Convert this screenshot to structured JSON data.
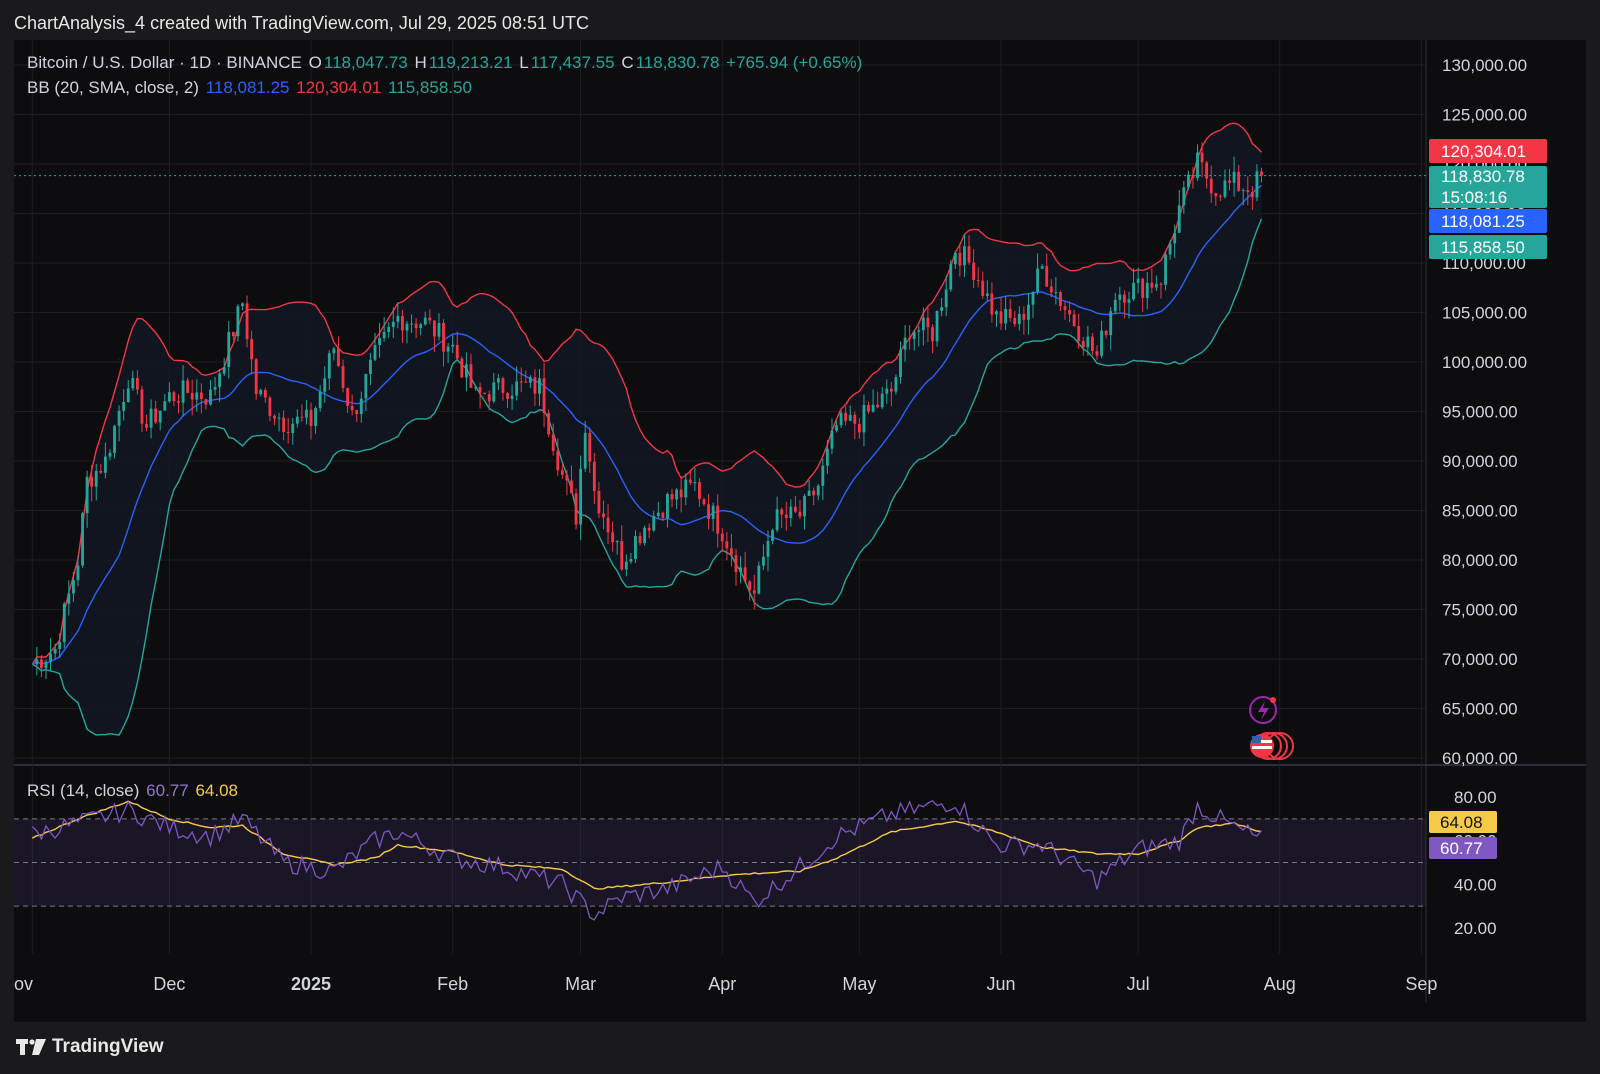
{
  "header": {
    "title": "ChartAnalysis_4 created with TradingView.com, Jul 29, 2025 08:51 UTC"
  },
  "legend": {
    "symbol": "Bitcoin / U.S. Dollar · 1D · BINANCE",
    "o_label": "O",
    "o": "118,047.73",
    "h_label": "H",
    "h": "119,213.21",
    "l_label": "L",
    "l": "117,437.55",
    "c_label": "C",
    "c": "118,830.78",
    "change": "+765.94 (+0.65%)",
    "bb_label": "BB (20, SMA, close, 2)",
    "bb_basis": "118,081.25",
    "bb_upper": "120,304.01",
    "bb_lower": "115,858.50",
    "rsi_label": "RSI (14, close)",
    "rsi_value": "60.77",
    "rsi_ma": "64.08"
  },
  "badges": {
    "upper": "120,304.01",
    "price": "118,830.78",
    "countdown": "15:08:16",
    "basis": "118,081.25",
    "lower": "115,858.50",
    "rsi_ma": "64.08",
    "rsi": "60.77"
  },
  "footer": {
    "brand": "TradingView"
  },
  "colors": {
    "up": "#26a69a",
    "down": "#f23645",
    "basis": "#2962ff",
    "upper": "#f23645",
    "lower": "#26a69a",
    "rsi": "#7e57c2",
    "rsi_ma": "#f7c948"
  },
  "chart_data": [
    {
      "type": "candlestick",
      "title": "Bitcoin / U.S. Dollar · 1D · BINANCE",
      "y_ticks": [
        "130,000.00",
        "125,000.00",
        "120,000.00",
        "115,000.00",
        "110,000.00",
        "105,000.00",
        "100,000.00",
        "95,000.00",
        "90,000.00",
        "85,000.00",
        "80,000.00",
        "75,000.00",
        "70,000.00",
        "65,000.00",
        "60,000.00"
      ],
      "ylim": [
        60000,
        130000
      ],
      "x_ticks": [
        "ov",
        "Dec",
        "2025",
        "Feb",
        "Mar",
        "Apr",
        "May",
        "Jun",
        "Jul",
        "Aug",
        "Sep"
      ],
      "x_tick_dates": [
        "2024-11-01",
        "2024-12-01",
        "2025-01-01",
        "2025-02-01",
        "2025-03-01",
        "2025-04-01",
        "2025-05-01",
        "2025-06-01",
        "2025-07-01",
        "2025-08-01",
        "2025-09-01"
      ],
      "close_series": {
        "dates": [
          "2024-11-01",
          "2024-11-06",
          "2024-11-11",
          "2024-11-13",
          "2024-11-17",
          "2024-11-22",
          "2024-11-26",
          "2024-12-01",
          "2024-12-05",
          "2024-12-10",
          "2024-12-17",
          "2024-12-20",
          "2024-12-26",
          "2025-01-01",
          "2025-01-06",
          "2025-01-10",
          "2025-01-15",
          "2025-01-20",
          "2025-01-26",
          "2025-02-01",
          "2025-02-06",
          "2025-02-12",
          "2025-02-20",
          "2025-02-25",
          "2025-02-28",
          "2025-03-02",
          "2025-03-04",
          "2025-03-10",
          "2025-03-15",
          "2025-03-20",
          "2025-03-26",
          "2025-04-01",
          "2025-04-06",
          "2025-04-08",
          "2025-04-12",
          "2025-04-18",
          "2025-04-22",
          "2025-04-26",
          "2025-05-01",
          "2025-05-08",
          "2025-05-12",
          "2025-05-17",
          "2025-05-22",
          "2025-05-26",
          "2025-05-31",
          "2025-06-05",
          "2025-06-10",
          "2025-06-15",
          "2025-06-22",
          "2025-06-26",
          "2025-07-01",
          "2025-07-06",
          "2025-07-10",
          "2025-07-14",
          "2025-07-18",
          "2025-07-22",
          "2025-07-26",
          "2025-07-28"
        ],
        "values": [
          69500,
          71000,
          80000,
          88000,
          90000,
          98500,
          93500,
          96500,
          97000,
          96500,
          106000,
          97000,
          94000,
          94000,
          101500,
          94500,
          100500,
          104500,
          104000,
          101500,
          96500,
          97500,
          97500,
          88500,
          84500,
          94000,
          87000,
          80000,
          83500,
          86000,
          87500,
          83000,
          78000,
          76500,
          84000,
          84500,
          87500,
          93500,
          94000,
          97000,
          103500,
          103000,
          111500,
          109500,
          104500,
          104000,
          109500,
          105500,
          100500,
          107000,
          107500,
          108500,
          115500,
          120000,
          117500,
          118000,
          117500,
          118830
        ]
      }
    },
    {
      "type": "line",
      "title": "RSI (14, close)",
      "y_ticks": [
        "80.00",
        "60.00",
        "40.00",
        "20.00"
      ],
      "ylim": [
        20,
        80
      ],
      "levels": [
        70,
        50,
        30
      ],
      "series": [
        {
          "name": "RSI",
          "dates": [
            "2024-11-01",
            "2024-11-11",
            "2024-11-22",
            "2024-12-01",
            "2024-12-10",
            "2024-12-17",
            "2024-12-26",
            "2025-01-06",
            "2025-01-15",
            "2025-01-20",
            "2025-02-01",
            "2025-02-12",
            "2025-02-25",
            "2025-03-04",
            "2025-03-10",
            "2025-03-20",
            "2025-04-01",
            "2025-04-08",
            "2025-04-18",
            "2025-04-26",
            "2025-05-08",
            "2025-05-22",
            "2025-05-31",
            "2025-06-10",
            "2025-06-22",
            "2025-07-01",
            "2025-07-10",
            "2025-07-14",
            "2025-07-22",
            "2025-07-28"
          ],
          "values": [
            63,
            68,
            74,
            66,
            62,
            70,
            50,
            46,
            60,
            64,
            52,
            48,
            40,
            26,
            34,
            38,
            48,
            32,
            48,
            62,
            72,
            78,
            58,
            58,
            42,
            56,
            60,
            76,
            66,
            60.77
          ]
        },
        {
          "name": "RSI MA",
          "dates": [
            "2024-11-01",
            "2024-11-11",
            "2024-11-22",
            "2024-12-01",
            "2024-12-10",
            "2024-12-17",
            "2024-12-26",
            "2025-01-06",
            "2025-01-15",
            "2025-01-20",
            "2025-02-01",
            "2025-02-12",
            "2025-02-25",
            "2025-03-04",
            "2025-03-10",
            "2025-03-20",
            "2025-04-01",
            "2025-04-08",
            "2025-04-18",
            "2025-04-26",
            "2025-05-08",
            "2025-05-22",
            "2025-05-31",
            "2025-06-10",
            "2025-06-22",
            "2025-07-01",
            "2025-07-10",
            "2025-07-14",
            "2025-07-22",
            "2025-07-28"
          ],
          "values": [
            61,
            70,
            78,
            70,
            66,
            67,
            54,
            49,
            52,
            58,
            55,
            49,
            47,
            38,
            39,
            41,
            44,
            45,
            46,
            52,
            64,
            69,
            64,
            57,
            54,
            54,
            60,
            66,
            68,
            64.08
          ]
        }
      ]
    }
  ]
}
